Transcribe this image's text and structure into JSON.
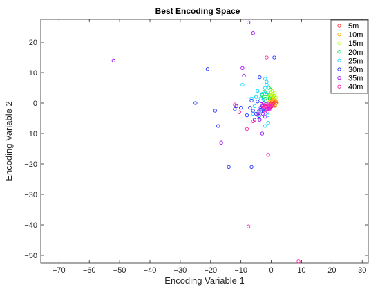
{
  "chart_data": {
    "type": "scatter",
    "title": "Best Encoding Space",
    "xlabel": "Encoding Variable 1",
    "ylabel": "Encoding Variable 2",
    "xlim": [
      -76,
      32
    ],
    "ylim": [
      -52.5,
      27.5
    ],
    "xticks": [
      -70,
      -60,
      -50,
      -40,
      -30,
      -20,
      -10,
      0,
      10,
      20,
      30
    ],
    "yticks": [
      -50,
      -40,
      -30,
      -20,
      -10,
      0,
      10,
      20
    ],
    "xtick_labels": [
      "−70",
      "−60",
      "−50",
      "−40",
      "−30",
      "−20",
      "−10",
      "0",
      "10",
      "20",
      "30"
    ],
    "ytick_labels": [
      "−50",
      "−40",
      "−30",
      "−20",
      "−10",
      "0",
      "10",
      "20"
    ],
    "grid": false,
    "legend_position": "top-right",
    "marker": "open-circle",
    "series": [
      {
        "name": "5m",
        "color": "#ff3333",
        "points": [
          [
            0.5,
            0.5
          ],
          [
            1.0,
            0.2
          ],
          [
            0.8,
            -0.3
          ],
          [
            1.4,
            0.4
          ],
          [
            0.3,
            -0.2
          ],
          [
            1.2,
            -0.5
          ],
          [
            0.6,
            0.9
          ],
          [
            1.6,
            0.0
          ],
          [
            0.9,
            0.1
          ],
          [
            0.2,
            0.6
          ]
        ]
      },
      {
        "name": "10m",
        "color": "#ffaa00",
        "points": [
          [
            0.2,
            1.0
          ],
          [
            0.8,
            1.5
          ],
          [
            1.5,
            0.7
          ],
          [
            -0.3,
            0.5
          ],
          [
            1.9,
            0.1
          ],
          [
            0.5,
            1.9
          ],
          [
            0.0,
            -0.5
          ],
          [
            1.3,
            -0.9
          ],
          [
            -0.5,
            1.2
          ],
          [
            0.9,
            2.4
          ],
          [
            0.4,
            0.3
          ]
        ]
      },
      {
        "name": "15m",
        "color": "#aaff00",
        "points": [
          [
            -0.5,
            2.0
          ],
          [
            0.5,
            3.0
          ],
          [
            -1.0,
            1.0
          ],
          [
            0.8,
            2.5
          ],
          [
            1.5,
            1.8
          ],
          [
            -0.2,
            3.5
          ],
          [
            0.0,
            2.2
          ],
          [
            0.3,
            4.0
          ],
          [
            -0.8,
            2.8
          ],
          [
            1.2,
            3.2
          ]
        ]
      },
      {
        "name": "20m",
        "color": "#00e64d",
        "points": [
          [
            -1.0,
            3.5
          ],
          [
            -2.0,
            1.5
          ],
          [
            -1.5,
            2.8
          ],
          [
            -0.3,
            4.5
          ],
          [
            -2.5,
            2.0
          ],
          [
            -1.8,
            0.5
          ],
          [
            -0.8,
            5.0
          ],
          [
            -3.0,
            2.6
          ],
          [
            -2.2,
            3.8
          ],
          [
            -0.5,
            1.6
          ]
        ]
      },
      {
        "name": "25m",
        "color": "#00d9ff",
        "points": [
          [
            -2.0,
            5.0
          ],
          [
            -3.0,
            3.0
          ],
          [
            -1.5,
            7.0
          ],
          [
            -4.0,
            -3.0
          ],
          [
            -2.5,
            1.2
          ],
          [
            -3.5,
            -1.5
          ],
          [
            -1.0,
            -6.5
          ],
          [
            -2.0,
            -7.5
          ],
          [
            -6.0,
            -3.5
          ],
          [
            -4.5,
            4.0
          ],
          [
            -2.0,
            8.0
          ],
          [
            -1.5,
            6.0
          ],
          [
            -3.5,
            1.5
          ],
          [
            -5.0,
            2.0
          ],
          [
            -6.5,
            1.5
          ],
          [
            -9.5,
            6.0
          ],
          [
            -4.0,
            -5.0
          ],
          [
            -1.2,
            -4.0
          ],
          [
            -2.8,
            -2.0
          ],
          [
            -5.5,
            -1.0
          ],
          [
            -1.8,
            3.5
          ]
        ]
      },
      {
        "name": "30m",
        "color": "#1f2fff",
        "points": [
          [
            -21.0,
            11.2
          ],
          [
            -25.0,
            0.0
          ],
          [
            -18.5,
            -2.5
          ],
          [
            -17.5,
            -7.5
          ],
          [
            -14.0,
            -21.0
          ],
          [
            -6.5,
            -21.0
          ],
          [
            1.0,
            15.0
          ],
          [
            -10.0,
            -1.5
          ],
          [
            -11.5,
            -1.0
          ],
          [
            -12.0,
            -2.0
          ],
          [
            -7.0,
            -1.5
          ],
          [
            -6.0,
            -2.5
          ],
          [
            -4.5,
            0.5
          ],
          [
            -8.0,
            -4.0
          ],
          [
            -5.0,
            -3.5
          ],
          [
            -3.5,
            -2.2
          ],
          [
            -3.0,
            -1.0
          ],
          [
            -5.5,
            -5.5
          ],
          [
            -2.5,
            -2.8
          ],
          [
            -6.5,
            0.8
          ],
          [
            -4.0,
            -4.2
          ],
          [
            -3.8,
            8.5
          ]
        ]
      },
      {
        "name": "35m",
        "color": "#9900ff",
        "points": [
          [
            -52.0,
            14.0
          ],
          [
            -16.5,
            -13.0
          ],
          [
            -9.5,
            11.5
          ],
          [
            -9.0,
            9.0
          ],
          [
            -7.5,
            26.5
          ],
          [
            -6.0,
            23.0
          ],
          [
            -3.0,
            -10.0
          ],
          [
            -2.0,
            -4.5
          ],
          [
            -1.0,
            -2.0
          ],
          [
            -3.5,
            -1.5
          ],
          [
            -2.5,
            0.0
          ],
          [
            -4.0,
            -2.5
          ],
          [
            -1.5,
            -1.0
          ],
          [
            -0.5,
            -1.8
          ],
          [
            -2.8,
            -3.5
          ],
          [
            -1.2,
            -2.8
          ],
          [
            -4.5,
            -3.8
          ],
          [
            -3.2,
            0.6
          ],
          [
            -0.2,
            -1.2
          ],
          [
            -1.8,
            -0.4
          ],
          [
            -3.8,
            -5.5
          ],
          [
            -2.2,
            -1.6
          ]
        ]
      },
      {
        "name": "40m",
        "color": "#ff22aa",
        "points": [
          [
            -7.5,
            -40.5
          ],
          [
            9.0,
            -52.0
          ],
          [
            -1.5,
            15.0
          ],
          [
            -1.0,
            -17.0
          ],
          [
            -8.0,
            -8.5
          ],
          [
            -12.0,
            -0.5
          ],
          [
            -10.5,
            -3.0
          ],
          [
            -6.0,
            -6.0
          ],
          [
            -2.0,
            -1.0
          ],
          [
            -1.0,
            -0.5
          ],
          [
            0.0,
            -1.2
          ],
          [
            -0.5,
            -0.8
          ],
          [
            -1.5,
            -2.0
          ],
          [
            -2.5,
            -1.2
          ],
          [
            0.3,
            -1.0
          ],
          [
            -0.8,
            -1.5
          ],
          [
            -1.8,
            -0.9
          ],
          [
            -0.3,
            -0.3
          ],
          [
            -1.2,
            -1.6
          ],
          [
            -2.2,
            -2.4
          ],
          [
            -0.6,
            -2.2
          ],
          [
            0.2,
            -0.6
          ],
          [
            -1.6,
            -1.2
          ],
          [
            -0.9,
            -0.2
          ],
          [
            -2.8,
            -0.6
          ]
        ]
      }
    ]
  }
}
